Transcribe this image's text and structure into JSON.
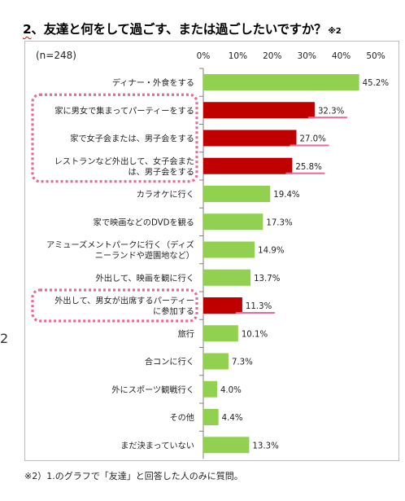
{
  "title": {
    "number": "2",
    "text": "、友達と何をして過ごす、または過ごしたいですか？",
    "note": "※2"
  },
  "footnote": "※2）1.のグラフで「友達」と回答した人のみに質問。",
  "side_mark": "2",
  "colors": {
    "green": "#92d050",
    "red": "#c00000",
    "pink_highlight": "#e8699c"
  },
  "chart_data": {
    "type": "bar",
    "orientation": "horizontal",
    "sample_label": "(n=248)",
    "xlim": [
      0,
      50
    ],
    "ticks": [
      "0%",
      "10%",
      "20%",
      "30%",
      "40%",
      "50%"
    ],
    "tick_values": [
      0,
      10,
      20,
      30,
      40,
      50
    ],
    "grid": false,
    "categories": [
      "ディナー・外食をする",
      "家に男女で集まってパーティーをする",
      "家で女子会または、男子会をする",
      "レストランなど外出して、女子会または、男子会をする",
      "カラオケに行く",
      "家で映画などのDVDを観る",
      "アミューズメントパークに行く（ディズニーランドや遊園地など）",
      "外出して、映画を観に行く",
      "外出して、男女が出席するパーティーに参加する",
      "旅行",
      "合コンに行く",
      "外にスポーツ観戦行く",
      "その他",
      "まだ決まっていない"
    ],
    "category_lines": [
      [
        "ディナー・外食をする"
      ],
      [
        "家に男女で集まってパーティーをする"
      ],
      [
        "家で女子会または、男子会をする"
      ],
      [
        "レストランなど外出して、女子会また",
        "は、男子会をする"
      ],
      [
        "カラオケに行く"
      ],
      [
        "家で映画などのDVDを観る"
      ],
      [
        "アミューズメントパークに行く（ディズ",
        "ニーランドや遊園地など）"
      ],
      [
        "外出して、映画を観に行く"
      ],
      [
        "外出して、男女が出席するパーティー",
        "に参加する"
      ],
      [
        "旅行"
      ],
      [
        "合コンに行く"
      ],
      [
        "外にスポーツ観戦行く"
      ],
      [
        "その他"
      ],
      [
        "まだ決まっていない"
      ]
    ],
    "values": [
      45.2,
      32.3,
      27.0,
      25.8,
      19.4,
      17.3,
      14.9,
      13.7,
      11.3,
      10.1,
      7.3,
      4.0,
      4.4,
      13.3
    ],
    "value_labels": [
      "45.2%",
      "32.3%",
      "27.0%",
      "25.8%",
      "19.4%",
      "17.3%",
      "14.9%",
      "13.7%",
      "11.3%",
      "10.1%",
      "7.3%",
      "4.0%",
      "4.4%",
      "13.3%"
    ],
    "highlighted": [
      false,
      true,
      true,
      true,
      false,
      false,
      false,
      false,
      true,
      false,
      false,
      false,
      false,
      false
    ],
    "highlight_groups": [
      [
        1,
        3
      ],
      [
        8,
        8
      ]
    ]
  }
}
